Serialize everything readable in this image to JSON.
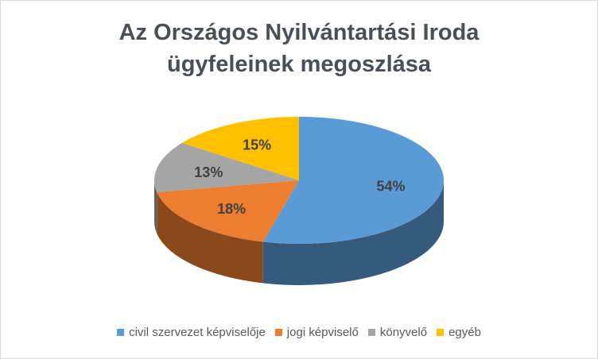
{
  "chart_data": {
    "type": "pie",
    "title_lines": [
      "Az Országos Nyilvántartási Iroda",
      "ügyfeleinek megoszlása"
    ],
    "categories": [
      "civil szervezet képviselője",
      "jogi képviselő",
      "könyvelő",
      "egyéb"
    ],
    "values": [
      54,
      18,
      13,
      15
    ],
    "labels": [
      "54%",
      "18%",
      "13%",
      "15%"
    ],
    "colors": [
      "#5b9bd5",
      "#ed7d31",
      "#a5a5a5",
      "#ffc000"
    ],
    "legend_position": "bottom",
    "style": "3d"
  }
}
